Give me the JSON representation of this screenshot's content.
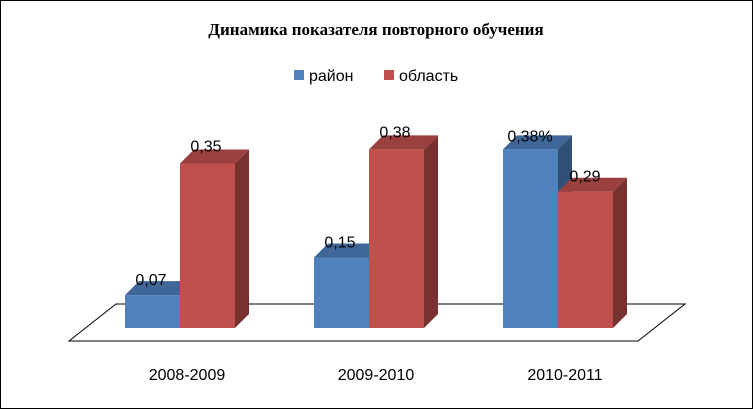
{
  "chart_data": {
    "type": "bar",
    "title": "Динамика показателя повторного обучения",
    "categories": [
      "2008-2009",
      "2009-2010",
      "2010-2011"
    ],
    "series": [
      {
        "name": "район",
        "color": "#4F81BD",
        "values": [
          0.07,
          0.15,
          0.38
        ],
        "labels": [
          "0,07",
          "0,15",
          "0,38%"
        ]
      },
      {
        "name": "область",
        "color": "#C0504D",
        "values": [
          0.35,
          0.38,
          0.29
        ],
        "labels": [
          "0,35",
          "0,38",
          "0,29"
        ]
      }
    ],
    "ylim": [
      0,
      0.4
    ],
    "grid": false,
    "legend_position": "top",
    "style": "3d-column"
  }
}
